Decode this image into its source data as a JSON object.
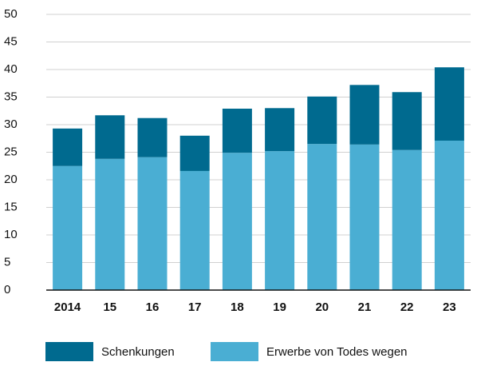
{
  "chart_data": {
    "type": "stacked-bar",
    "categories": [
      "2014",
      "15",
      "16",
      "17",
      "18",
      "19",
      "20",
      "21",
      "22",
      "23"
    ],
    "series": [
      {
        "name": "Schenkungen",
        "color": "#006a8f",
        "values": [
          6.8,
          7.9,
          7.1,
          6.4,
          8.0,
          7.8,
          8.6,
          10.8,
          10.5,
          13.3
        ]
      },
      {
        "name": "Erwerbe von Todes wegen",
        "color": "#4aaed3",
        "values": [
          22.5,
          23.8,
          24.1,
          21.6,
          24.9,
          25.2,
          26.5,
          26.4,
          25.4,
          27.1
        ]
      }
    ],
    "ylim": [
      0,
      50
    ],
    "yticks": [
      0,
      5,
      10,
      15,
      20,
      25,
      30,
      35,
      40,
      45,
      50
    ],
    "grid": true
  }
}
